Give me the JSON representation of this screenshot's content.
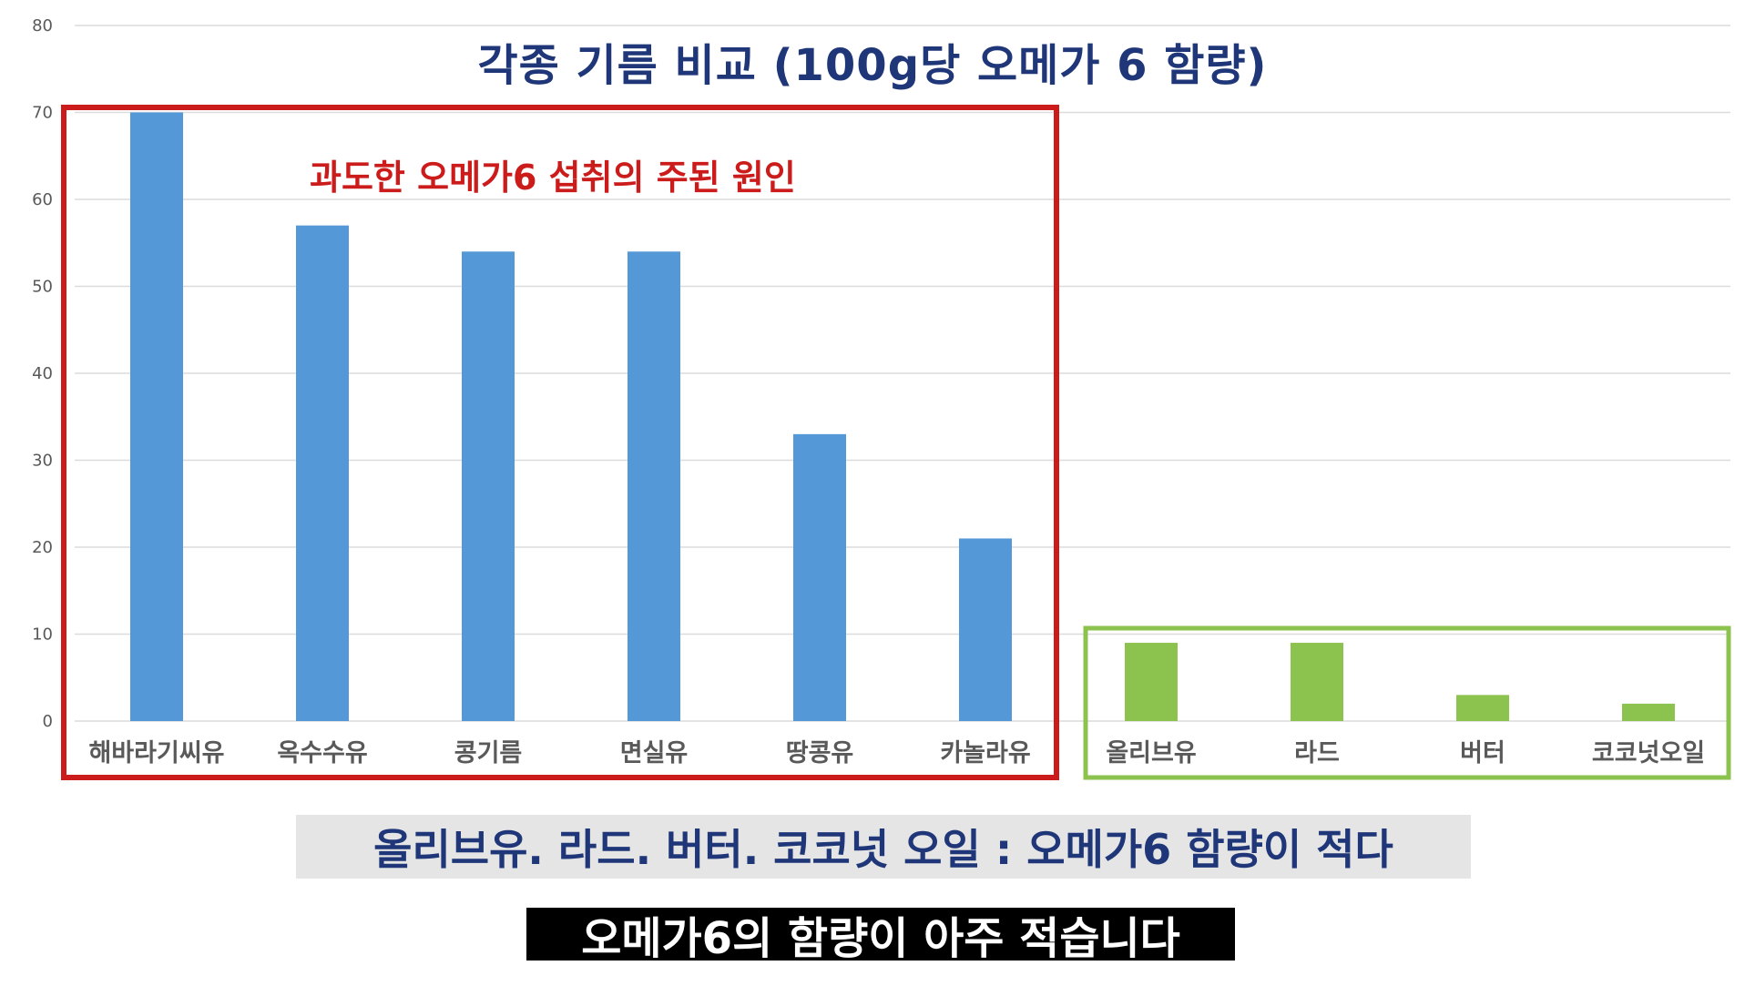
{
  "chart_data": {
    "type": "bar",
    "title": "각종 기름 비교 (100g당 오메가 6 함량)",
    "ylim": [
      0,
      80
    ],
    "yticks": [
      0,
      10,
      20,
      30,
      40,
      50,
      60,
      70,
      80
    ],
    "grid": true,
    "categories": [
      "해바라기씨유",
      "옥수수유",
      "콩기름",
      "면실유",
      "땅콩유",
      "카놀라유",
      "올리브유",
      "라드",
      "버터",
      "코코넛오일"
    ],
    "values": [
      70,
      57,
      54,
      54,
      33,
      21,
      9,
      9,
      3,
      2
    ],
    "bar_colors": [
      "#5598d8",
      "#5598d8",
      "#5598d8",
      "#5598d8",
      "#5598d8",
      "#5598d8",
      "#8cc24e",
      "#8cc24e",
      "#8cc24e",
      "#8cc24e"
    ],
    "annotations": {
      "high_group_label": "과도한 오메가6 섭취의 주된 원인",
      "high_group_color": "#cc1b1b",
      "low_group_color": "#8cc24e"
    }
  },
  "summary_text": "올리브유. 라드. 버터. 코코넛 오일 : 오메가6 함량이 적다",
  "subtitle_text": "오메가6의 함량이 아주 적습니다"
}
